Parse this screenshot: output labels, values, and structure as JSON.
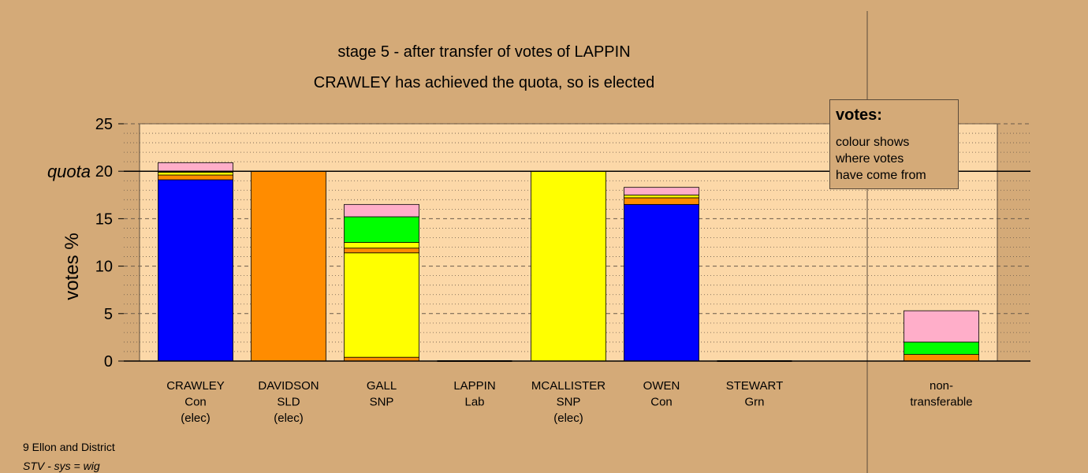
{
  "chart_data": {
    "type": "bar",
    "stacked": true,
    "title": "stage 5 - after transfer of votes of LAPPIN",
    "subtitle": "CRAWLEY has achieved the quota, so is elected",
    "ylabel": "votes %",
    "ylim": [
      0,
      25
    ],
    "yticks": [
      0,
      5,
      10,
      15,
      20,
      25
    ],
    "yticklabels": [
      "0",
      "5",
      "10",
      "15",
      "20",
      "25"
    ],
    "quota": 20,
    "quota_label": "quota",
    "categories": [
      {
        "lines": [
          "CRAWLEY",
          "Con",
          "(elec)"
        ]
      },
      {
        "lines": [
          "DAVIDSON",
          "SLD",
          "(elec)"
        ]
      },
      {
        "lines": [
          "GALL",
          "SNP"
        ]
      },
      {
        "lines": [
          "LAPPIN",
          "Lab"
        ]
      },
      {
        "lines": [
          "MCALLISTER",
          "SNP",
          "(elec)"
        ]
      },
      {
        "lines": [
          "OWEN",
          "Con"
        ]
      },
      {
        "lines": [
          "STEWART",
          "Grn"
        ]
      }
    ],
    "nontransferable": {
      "lines": [
        "non-",
        "transferable"
      ]
    },
    "series": [
      {
        "color": "#0000ff",
        "values": [
          19.1,
          0,
          0,
          0,
          0,
          16.5,
          0
        ],
        "nontransferable": 0
      },
      {
        "color": "#ff8c00",
        "values": [
          0.5,
          20.0,
          0.4,
          0,
          0,
          0.7,
          0
        ],
        "nontransferable": 0.7
      },
      {
        "color": "#ffff00",
        "values": [
          0.3,
          0,
          11.0,
          0,
          20.0,
          0.3,
          0
        ],
        "nontransferable": 0
      },
      {
        "color": "#ff8c00",
        "values": [
          0,
          0,
          0.5,
          0,
          0,
          0,
          0
        ],
        "nontransferable": 0
      },
      {
        "color": "#ffff00",
        "values": [
          0,
          0,
          0.6,
          0,
          0,
          0,
          0
        ],
        "nontransferable": 0
      },
      {
        "color": "#00ff00",
        "values": [
          0,
          0,
          2.7,
          0,
          0,
          0,
          0
        ],
        "nontransferable": 1.3
      },
      {
        "color": "#ffaec9",
        "values": [
          1.0,
          0,
          1.3,
          0,
          0,
          0.8,
          0
        ],
        "nontransferable": 3.3
      }
    ],
    "legend": {
      "title": "votes:",
      "lines": [
        "colour shows",
        "where votes",
        "have come from"
      ]
    },
    "grid": true
  },
  "footer": {
    "line1": "9 Ellon and District",
    "line2": "STV - sys = wig"
  }
}
